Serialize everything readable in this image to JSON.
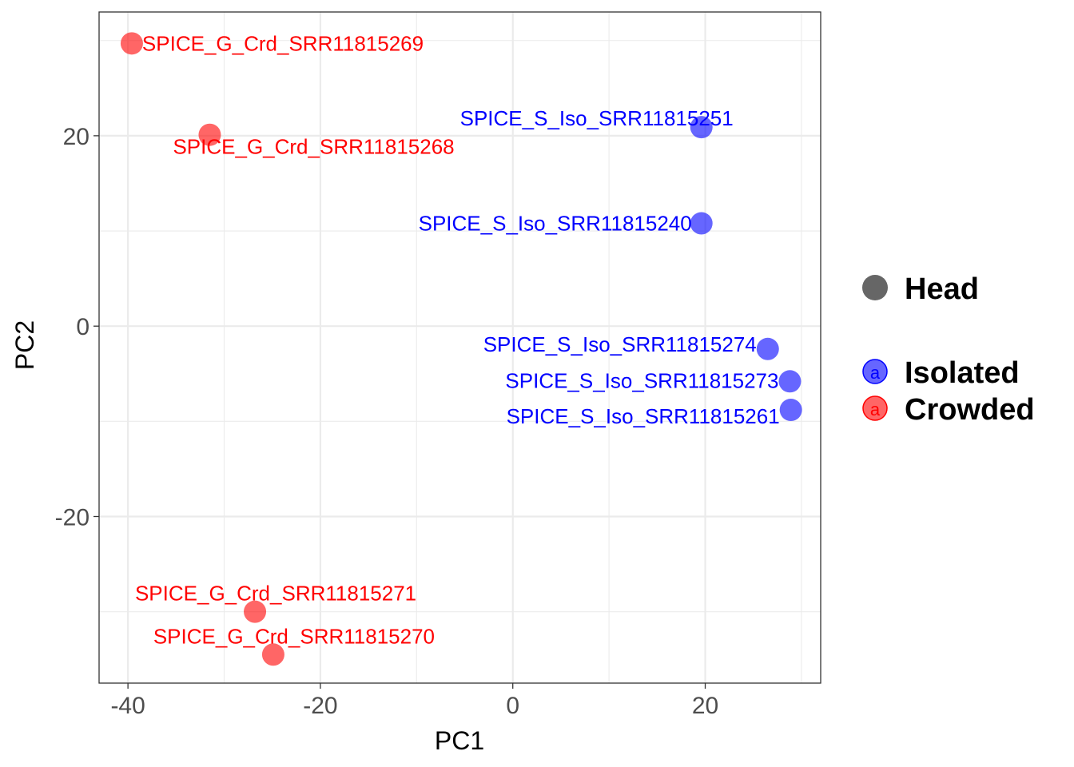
{
  "chart_data": {
    "type": "scatter",
    "xlabel": "PC1",
    "ylabel": "PC2",
    "xlim": [
      -43,
      32
    ],
    "ylim": [
      -37.5,
      33
    ],
    "grid": true,
    "x_ticks": [
      {
        "value": -40,
        "label": "-40"
      },
      {
        "value": -20,
        "label": "-20"
      },
      {
        "value": 0,
        "label": "0"
      },
      {
        "value": 20,
        "label": "20"
      }
    ],
    "y_ticks": [
      {
        "value": -20,
        "label": "-20"
      },
      {
        "value": 0,
        "label": "0"
      },
      {
        "value": 20,
        "label": "20"
      }
    ],
    "colors": {
      "Isolated": "#0000ff",
      "Crowded": "#ff0000",
      "Head": "#666666"
    },
    "legend": {
      "placement": "right",
      "shape_entry": {
        "label": "Head"
      },
      "color_entries": [
        {
          "label": "Isolated",
          "key_glyph": "a"
        },
        {
          "label": "Crowded",
          "key_glyph": "a"
        }
      ]
    },
    "series": [
      {
        "name": "Crowded",
        "points": [
          {
            "x": -39.6,
            "y": 29.7,
            "label": "SPICE_G_Crd_SRR11815269",
            "anchor": "start"
          },
          {
            "x": -31.5,
            "y": 20.1,
            "label": "SPICE_G_Crd_SRR11815268",
            "anchor": "start"
          },
          {
            "x": -26.8,
            "y": -30.0,
            "label": "SPICE_G_Crd_SRR11815271",
            "anchor": "middle"
          },
          {
            "x": -24.9,
            "y": -34.5,
            "label": "SPICE_G_Crd_SRR11815270",
            "anchor": "middle"
          }
        ]
      },
      {
        "name": "Isolated",
        "points": [
          {
            "x": 19.6,
            "y": 20.9,
            "label": "SPICE_S_Iso_SRR11815251",
            "anchor": "end"
          },
          {
            "x": 19.6,
            "y": 10.8,
            "label": "SPICE_S_Iso_SRR11815240",
            "anchor": "end"
          },
          {
            "x": 26.5,
            "y": -2.4,
            "label": "SPICE_S_Iso_SRR11815274",
            "anchor": "end"
          },
          {
            "x": 28.8,
            "y": -5.8,
            "label": "SPICE_S_Iso_SRR11815273",
            "anchor": "end"
          },
          {
            "x": 28.9,
            "y": -8.8,
            "label": "SPICE_S_Iso_SRR11815261",
            "anchor": "end"
          }
        ]
      }
    ]
  }
}
